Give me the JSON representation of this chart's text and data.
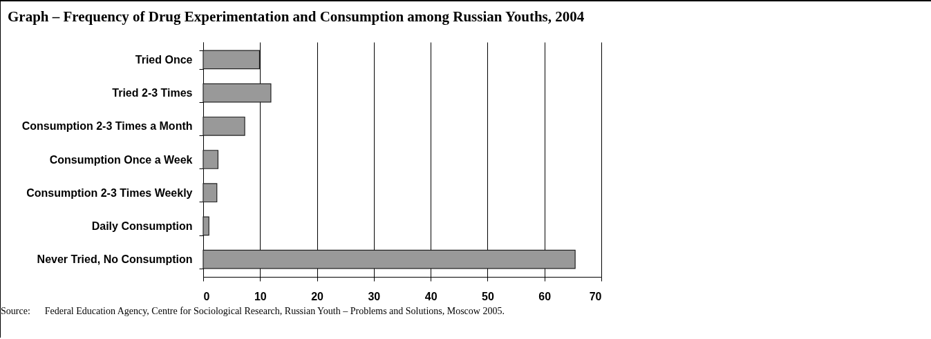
{
  "chart_data": {
    "type": "bar",
    "orientation": "horizontal",
    "title": "Graph – Frequency of Drug Experimentation and Consumption among Russian Youths, 2004",
    "categories": [
      "Tried Once",
      "Tried 2-3 Times",
      "Consumption 2-3 Times a Month",
      "Consumption Once a Week",
      "Consumption 2-3 Times Weekly",
      "Daily Consumption",
      "Never Tried, No Consumption"
    ],
    "values": [
      9.9,
      11.9,
      7.3,
      2.6,
      2.4,
      1.0,
      65.4
    ],
    "color": "#999999",
    "xlim": [
      0,
      70
    ],
    "xticks": [
      0,
      10,
      20,
      30,
      40,
      50,
      60,
      70
    ],
    "grid": "x",
    "annotations": [
      "Source:      Federal Education Agency, Centre for Sociological Research, Russian Youth – Problems and Solutions, Moscow 2005."
    ]
  }
}
